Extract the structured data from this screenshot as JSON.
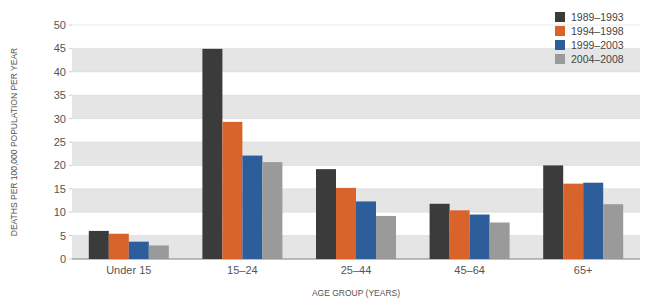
{
  "chart_data": {
    "type": "bar",
    "x_label": "AGE GROUP (YEARS)",
    "y_label": "DEATHS PER 100,000 POPULATION PER YEAR",
    "categories": [
      "Under 15",
      "15–24",
      "25–44",
      "45–64",
      "65+"
    ],
    "series": [
      {
        "name": "1989–1993",
        "color": "#3b3b3b",
        "values": [
          6.0,
          44.9,
          19.2,
          11.8,
          20.0
        ]
      },
      {
        "name": "1994–1998",
        "color": "#d8642b",
        "values": [
          5.4,
          29.3,
          15.2,
          10.4,
          16.1
        ]
      },
      {
        "name": "1999–2003",
        "color": "#2d5d9b",
        "values": [
          3.7,
          22.1,
          12.3,
          9.5,
          16.3
        ]
      },
      {
        "name": "2004–2008",
        "color": "#9a9a9a",
        "values": [
          2.9,
          20.7,
          9.2,
          7.8,
          11.7
        ]
      }
    ],
    "ylim": [
      0,
      50
    ],
    "yticks": [
      0,
      5,
      10,
      15,
      20,
      25,
      30,
      35,
      40,
      45,
      50
    ],
    "grid": true,
    "legend": "top-right"
  }
}
